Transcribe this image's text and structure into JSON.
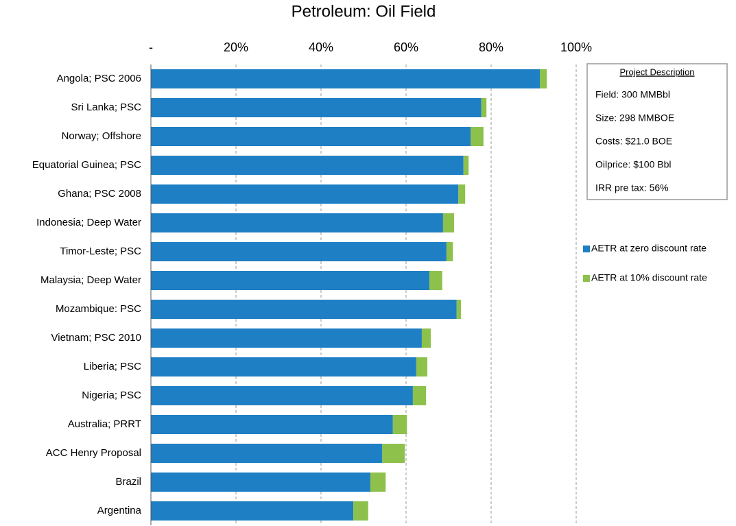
{
  "chart_data": {
    "type": "stacked-barh",
    "title": "Petroleum: Oil Field",
    "categories": [
      "Angola; PSC 2006",
      "Sri Lanka; PSC",
      "Norway; Offshore",
      "Equatorial Guinea; PSC",
      "Ghana; PSC 2008",
      "Indonesia; Deep Water",
      "Timor-Leste;  PSC",
      "Malaysia; Deep Water",
      "Mozambique: PSC",
      "Vietnam; PSC 2010",
      "Liberia; PSC",
      "Nigeria; PSC",
      "Australia; PRRT",
      "ACC Henry Proposal",
      "Brazil",
      "Argentina"
    ],
    "series": [
      {
        "name": "AETR at zero discount rate",
        "color": "#1f7fc4",
        "values": [
          91.5,
          77.7,
          75.2,
          73.5,
          72.3,
          68.7,
          69.5,
          65.5,
          71.9,
          63.7,
          62.4,
          61.6,
          56.9,
          54.4,
          51.6,
          47.6
        ]
      },
      {
        "name": "AETR at 10% discount rate",
        "color": "#8dc14b",
        "values": [
          1.6,
          1.2,
          3.0,
          1.2,
          1.6,
          2.6,
          1.5,
          3.0,
          1.0,
          2.1,
          2.6,
          3.1,
          3.3,
          5.3,
          3.6,
          3.5
        ]
      }
    ],
    "xlim": [
      0,
      100
    ],
    "xticks": [
      {
        "value": 0,
        "label": "-"
      },
      {
        "value": 20,
        "label": "20%"
      },
      {
        "value": 40,
        "label": "40%"
      },
      {
        "value": 60,
        "label": "60%"
      },
      {
        "value": 80,
        "label": "80%"
      },
      {
        "value": 100,
        "label": "100%"
      }
    ],
    "grid": true,
    "legend": "right",
    "annotation": {
      "title": "Project Description",
      "lines": [
        "Field: 300 MMBbl",
        "Size: 298 MMBOE",
        "Costs: $21.0 BOE",
        "Oilprice: $100 Bbl",
        "IRR pre tax: 56%"
      ]
    }
  }
}
